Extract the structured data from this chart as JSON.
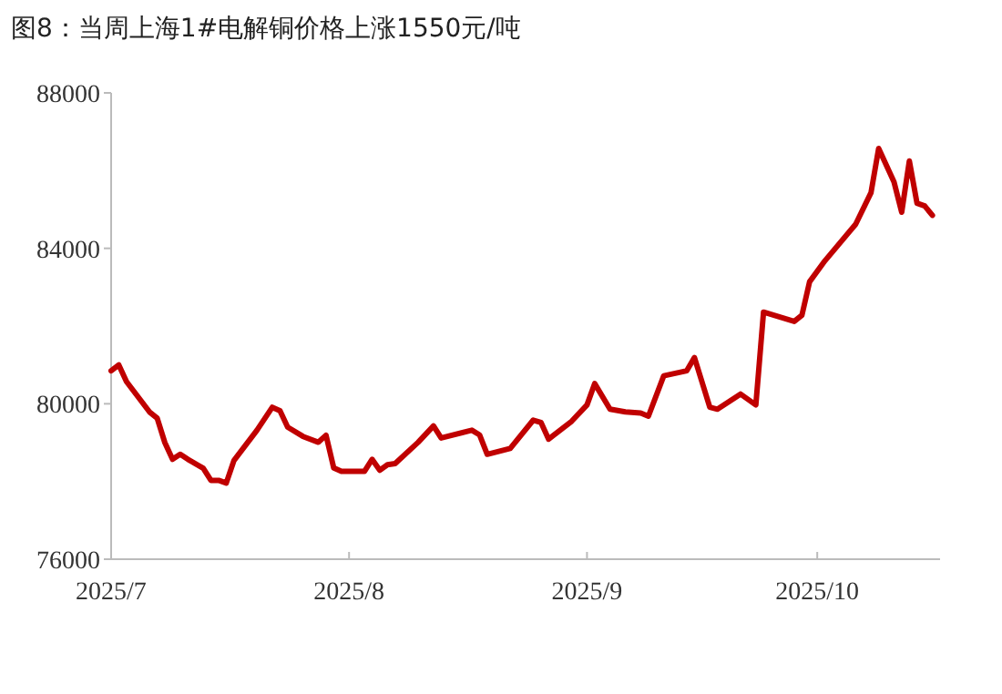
{
  "chart_data": {
    "type": "line",
    "title": "图8：当周上海1#电解铜价格上涨1550元/吨",
    "x": [
      "2025-07-01",
      "2025-07-02",
      "2025-07-03",
      "2025-07-06",
      "2025-07-07",
      "2025-07-08",
      "2025-07-09",
      "2025-07-10",
      "2025-07-11",
      "2025-07-13",
      "2025-07-14",
      "2025-07-15",
      "2025-07-16",
      "2025-07-17",
      "2025-07-20",
      "2025-07-22",
      "2025-07-23",
      "2025-07-24",
      "2025-07-26",
      "2025-07-28",
      "2025-07-29",
      "2025-07-30",
      "2025-07-31",
      "2025-08-03",
      "2025-08-04",
      "2025-08-05",
      "2025-08-06",
      "2025-08-07",
      "2025-08-10",
      "2025-08-12",
      "2025-08-13",
      "2025-08-17",
      "2025-08-18",
      "2025-08-19",
      "2025-08-22",
      "2025-08-25",
      "2025-08-26",
      "2025-08-27",
      "2025-08-30",
      "2025-09-01",
      "2025-09-02",
      "2025-09-04",
      "2025-09-06",
      "2025-09-08",
      "2025-09-09",
      "2025-09-11",
      "2025-09-14",
      "2025-09-15",
      "2025-09-17",
      "2025-09-18",
      "2025-09-21",
      "2025-09-23",
      "2025-09-24",
      "2025-09-28",
      "2025-09-29",
      "2025-09-30",
      "2025-10-02",
      "2025-10-06",
      "2025-10-08",
      "2025-10-09",
      "2025-10-11",
      "2025-10-12",
      "2025-10-13",
      "2025-10-14",
      "2025-10-15",
      "2025-10-16"
    ],
    "series": [
      {
        "color": "#c00000",
        "values": [
          80850,
          81000,
          80570,
          79790,
          79630,
          79000,
          78570,
          78700,
          78570,
          78340,
          78030,
          78030,
          77960,
          78540,
          79320,
          79910,
          79820,
          79400,
          79160,
          79010,
          79190,
          78350,
          78260,
          78260,
          78570,
          78290,
          78430,
          78460,
          79010,
          79430,
          79120,
          79320,
          79200,
          78700,
          78850,
          79580,
          79520,
          79090,
          79550,
          79970,
          80520,
          79860,
          79790,
          79760,
          79680,
          80720,
          80850,
          81190,
          79910,
          79860,
          80250,
          79970,
          82360,
          82120,
          82280,
          83140,
          83680,
          84620,
          85430,
          86570,
          85710,
          84930,
          86250,
          85160,
          85090,
          84850
        ]
      }
    ],
    "xlim": [
      "2025-07-01",
      "2025-10-17"
    ],
    "xticks": [
      {
        "value": "2025-07-01",
        "label": "2025/7"
      },
      {
        "value": "2025-08-01",
        "label": "2025/8"
      },
      {
        "value": "2025-09-01",
        "label": "2025/9"
      },
      {
        "value": "2025-10-01",
        "label": "2025/10"
      }
    ],
    "ylim": [
      76000,
      88000
    ],
    "yticks": [
      76000,
      80000,
      84000,
      88000
    ],
    "grid": false,
    "marker": "none",
    "line_style": "solid"
  }
}
